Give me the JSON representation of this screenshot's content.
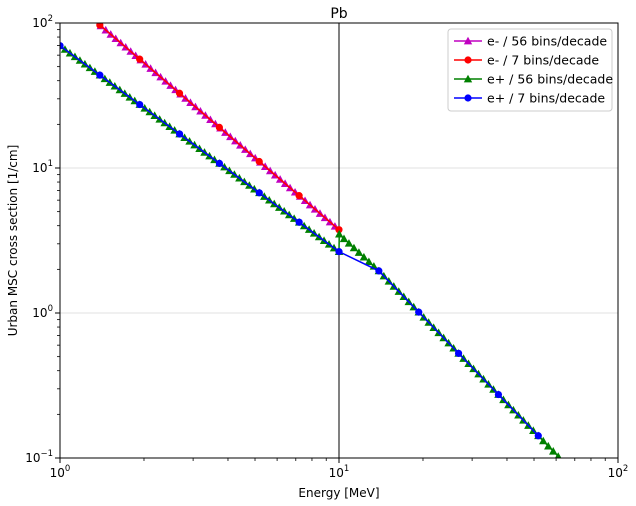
{
  "chart_data": {
    "type": "line",
    "title": "Pb",
    "xlabel": "Energy [MeV]",
    "ylabel": "Urban MSC cross section [1/cm]",
    "xscale": "log",
    "yscale": "log",
    "xlim": [
      1,
      100
    ],
    "ylim": [
      0.1,
      100
    ],
    "x_ticks": [
      {
        "value": 1,
        "base": "10",
        "exp": "0"
      },
      {
        "value": 10,
        "base": "10",
        "exp": "1"
      },
      {
        "value": 100,
        "base": "10",
        "exp": "2"
      }
    ],
    "y_ticks": [
      {
        "value": 0.1,
        "base": "10",
        "exp": "−1"
      },
      {
        "value": 1,
        "base": "10",
        "exp": "0"
      },
      {
        "value": 10,
        "base": "10",
        "exp": "1"
      },
      {
        "value": 100,
        "base": "10",
        "exp": "2"
      }
    ],
    "grid": "horizontal-major",
    "vline_x": 10,
    "legend_position": "top-right",
    "series": [
      {
        "name": "e- / 56 bins/decade",
        "color": "#c000c0",
        "marker": "triangle",
        "x_start": 1.4,
        "x_end": 10,
        "bins_per_decade": 56,
        "y_at_10": 3.75,
        "log_slope": -1.647
      },
      {
        "name": "e- / 7 bins/decade",
        "color": "#ff0000",
        "marker": "circle",
        "x_start": 1.389,
        "x_end": 10,
        "bins_per_decade": 7,
        "y_at_10": 3.75,
        "log_slope": -1.647
      },
      {
        "name": "e+ / 56 bins/decade",
        "color": "#008000",
        "marker": "triangle",
        "x_start": 1,
        "x_end": 62,
        "bins_per_decade": 56,
        "y_at_10": 2.65,
        "log_slope": -1.42,
        "jump_at_10": 3.5,
        "high_ref_x": 13.9,
        "high_ref_y": 1.95
      },
      {
        "name": "e+ / 7 bins/decade",
        "color": "#0000ff",
        "marker": "circle",
        "x_start": 1,
        "x_end": 62,
        "bins_per_decade": 7,
        "y_at_10": 2.65,
        "log_slope": -1.42,
        "high_ref_x": 13.9,
        "high_ref_y": 1.95
      }
    ]
  }
}
